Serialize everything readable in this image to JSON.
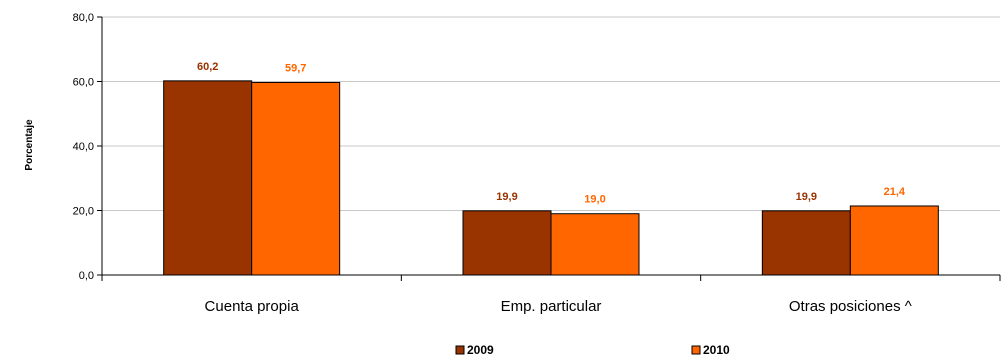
{
  "chart_data": {
    "type": "bar",
    "title": "",
    "xlabel": "",
    "ylabel": "Porcentaje",
    "ylim": [
      0,
      80
    ],
    "yticks": [
      "0,0",
      "20,0",
      "40,0",
      "60,0",
      "80,0"
    ],
    "grid": true,
    "legend_position": "bottom",
    "categories": [
      "Cuenta propia",
      "Emp. particular",
      "Otras posiciones ^"
    ],
    "series": [
      {
        "name": "2009",
        "values": [
          60.2,
          19.9,
          19.9
        ],
        "labels": [
          "60,2",
          "19,9",
          "19,9"
        ],
        "color": "#993300",
        "label_color": "#993300"
      },
      {
        "name": "2010",
        "values": [
          59.7,
          19.0,
          21.4
        ],
        "labels": [
          "59,7",
          "19,0",
          "21,4"
        ],
        "color": "#FF6600",
        "label_color": "#FF6600"
      }
    ]
  }
}
